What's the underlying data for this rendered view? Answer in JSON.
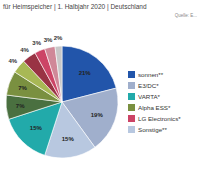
{
  "chart_data": {
    "type": "pie",
    "title": "für Heimspeicher | 1. Halbjahr 2020 | Deutschland",
    "annotations": [
      "Quelle: E..."
    ],
    "values": [
      21,
      19,
      15,
      15,
      7,
      7,
      4,
      4,
      3,
      3,
      2
    ],
    "value_labels": [
      "21%",
      "19%",
      "15%",
      "15%",
      "7%",
      "7%",
      "4%",
      "4%",
      "3%",
      "3%",
      "2%"
    ],
    "colors": [
      "#2255AA",
      "#A0AFCC",
      "#B8C8E0",
      "#22AAAA",
      "#4A7040",
      "#7A9040",
      "#A8B855",
      "#993344",
      "#CC4466",
      "#D08898",
      "#C8C8C8"
    ],
    "data_labels": true,
    "legend": "right",
    "legend_entries": [
      {
        "label": "sonnen**",
        "color": "#2255AA"
      },
      {
        "label": "E3/DC*",
        "color": "#A0AFCC"
      },
      {
        "label": "VARTA*",
        "color": "#22AAAA"
      },
      {
        "label": "Alpha ESS*",
        "color": "#7A9040"
      },
      {
        "label": "LG Electronics*",
        "color": "#CC4466"
      },
      {
        "label": "Sonstige**",
        "color": "#B8C8E0"
      }
    ]
  }
}
